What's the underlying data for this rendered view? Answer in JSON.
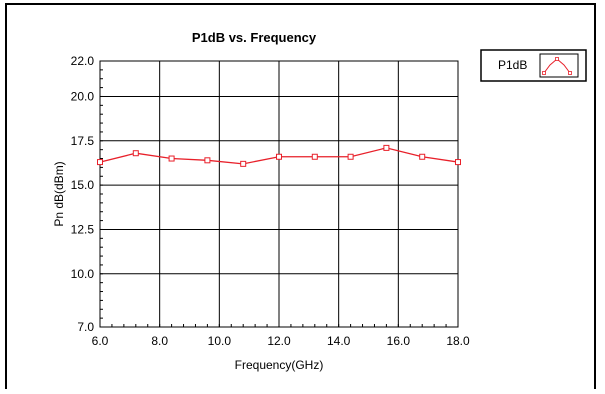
{
  "chart_data": {
    "type": "line",
    "title": "P1dB vs. Frequency",
    "xlabel": "Frequency(GHz)",
    "ylabel": "Pn dB(dBm)",
    "xlim": [
      6.0,
      18.0
    ],
    "ylim": [
      7.0,
      22.0
    ],
    "x_ticks": [
      "6.0",
      "8.0",
      "10.0",
      "12.0",
      "14.0",
      "16.0",
      "18.0"
    ],
    "y_ticks": [
      "7.0",
      "10.0",
      "12.5",
      "15.0",
      "17.5",
      "20.0",
      "22.0"
    ],
    "x_tick_values": [
      6.0,
      8.0,
      10.0,
      12.0,
      14.0,
      16.0,
      18.0
    ],
    "y_tick_values": [
      7.0,
      10.0,
      12.5,
      15.0,
      17.5,
      20.0,
      22.0
    ],
    "grid": true,
    "legend_position": "top-right",
    "series": [
      {
        "name": "P1dB",
        "color": "#e8202a",
        "marker": "square",
        "x": [
          6.0,
          7.2,
          8.4,
          9.6,
          10.8,
          12.0,
          13.2,
          14.4,
          15.6,
          16.8,
          18.0
        ],
        "y": [
          16.3,
          16.8,
          16.5,
          16.4,
          16.2,
          16.6,
          16.6,
          16.6,
          17.1,
          16.6,
          16.3
        ]
      }
    ]
  }
}
